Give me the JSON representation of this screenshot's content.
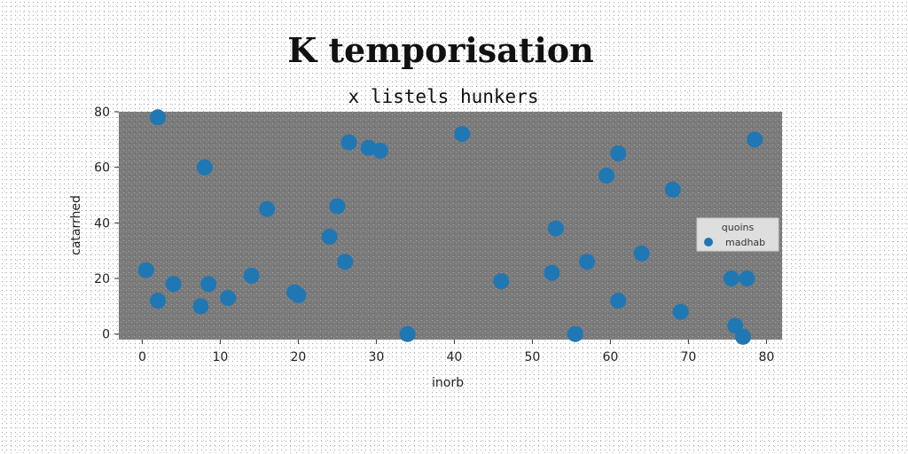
{
  "chart_data": {
    "type": "scatter",
    "title": "K temporisation",
    "subtitle": "x listels hunkers",
    "xlabel": "inorb",
    "ylabel": "catarrhed",
    "xlim": [
      -3,
      82
    ],
    "ylim": [
      -2,
      80
    ],
    "xticks": [
      0,
      10,
      20,
      30,
      40,
      50,
      60,
      70,
      80
    ],
    "yticks": [
      0,
      20,
      40,
      60,
      80
    ],
    "grid": false,
    "legend": {
      "title": "quoins",
      "placement": "center-right",
      "entries": [
        "madhab"
      ]
    },
    "series": [
      {
        "name": "madhab",
        "color": "#1f77b4",
        "x": [
          2,
          8,
          0.5,
          2,
          4,
          7.5,
          8.5,
          11,
          14,
          16,
          19.5,
          20,
          24,
          25,
          26,
          26.5,
          29,
          30.5,
          34,
          41,
          46,
          52.5,
          53,
          55.5,
          57,
          59.5,
          61,
          61,
          64,
          68,
          69,
          75.5,
          76,
          77,
          77.5,
          78.5
        ],
        "y": [
          78,
          60,
          23,
          12,
          18,
          10,
          18,
          13,
          21,
          45,
          15,
          14,
          35,
          46,
          26,
          69,
          67,
          66,
          0,
          72,
          19,
          22,
          38,
          0,
          26,
          57,
          65,
          12,
          29,
          52,
          8,
          20,
          3,
          -1,
          20,
          70
        ]
      }
    ]
  }
}
